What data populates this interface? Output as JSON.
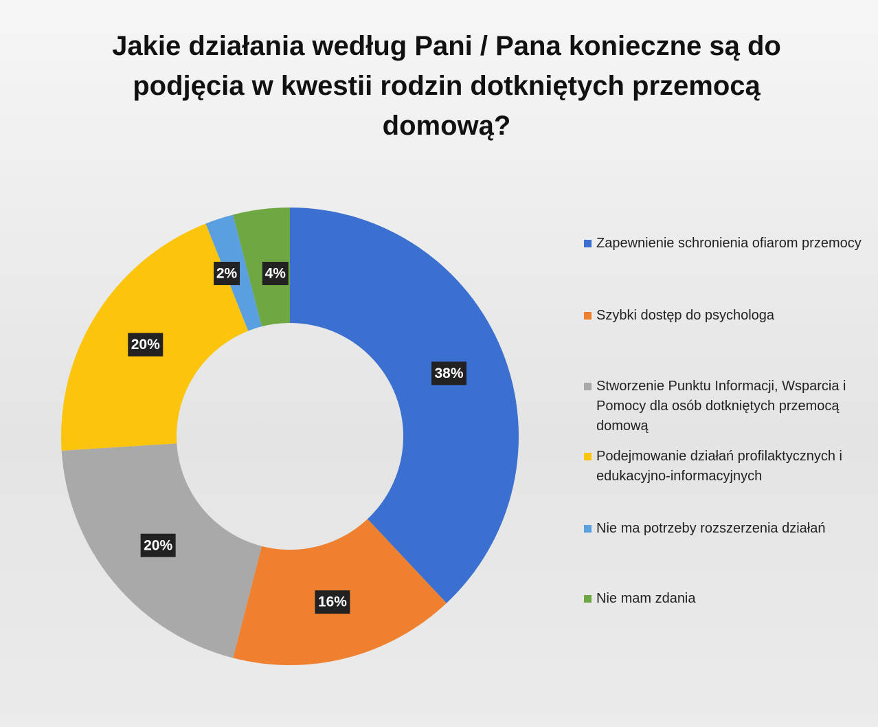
{
  "chart_data": {
    "type": "donut",
    "title": "Jakie działania według Pani / Pana konieczne są do podjęcia w kwestii rodzin dotkniętych przemocą domową?",
    "categories": [
      "Zapewnienie schronienia ofiarom przemocy",
      "Szybki dostęp do psychologa",
      "Stworzenie Punktu Informacji, Wsparcia i Pomocy dla osób dotkniętych przemocą domową",
      "Podejmowanie działań profilaktycznych i edukacyjno-informacyjnych",
      "Nie ma potrzeby rozszerzenia działań",
      "Nie mam zdania"
    ],
    "values": [
      38,
      16,
      20,
      20,
      2,
      4
    ],
    "value_labels": [
      "38%",
      "16%",
      "20%",
      "20%",
      "2%",
      "4%"
    ],
    "colors": [
      "#3b70d0",
      "#ef8030",
      "#a9a9a9",
      "#fcc40c",
      "#5aa0e0",
      "#6fa843"
    ],
    "legend": "right"
  }
}
